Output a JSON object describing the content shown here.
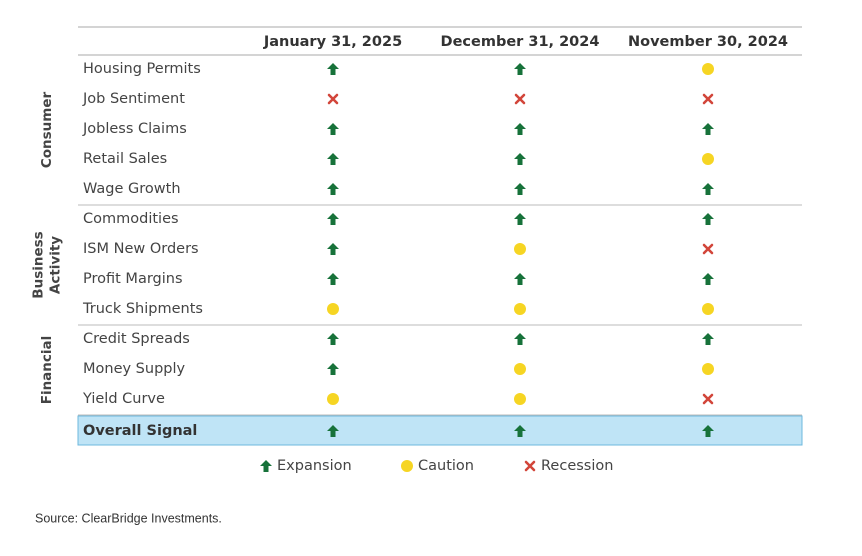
{
  "header": {
    "columns": [
      "January 31, 2025",
      "December 31, 2024",
      "November 30, 2024"
    ]
  },
  "groups": [
    {
      "label": [
        "Consumer"
      ],
      "rows": [
        {
          "label": "Housing Permits",
          "signals": [
            "Expansion",
            "Expansion",
            "Caution"
          ]
        },
        {
          "label": "Job Sentiment",
          "signals": [
            "Recession",
            "Recession",
            "Recession"
          ]
        },
        {
          "label": "Jobless Claims",
          "signals": [
            "Expansion",
            "Expansion",
            "Expansion"
          ]
        },
        {
          "label": "Retail Sales",
          "signals": [
            "Expansion",
            "Expansion",
            "Caution"
          ]
        },
        {
          "label": "Wage Growth",
          "signals": [
            "Expansion",
            "Expansion",
            "Expansion"
          ]
        }
      ]
    },
    {
      "label": [
        "Business",
        "Activity"
      ],
      "rows": [
        {
          "label": "Commodities",
          "signals": [
            "Expansion",
            "Expansion",
            "Expansion"
          ]
        },
        {
          "label": "ISM New Orders",
          "signals": [
            "Expansion",
            "Caution",
            "Recession"
          ]
        },
        {
          "label": "Profit Margins",
          "signals": [
            "Expansion",
            "Expansion",
            "Expansion"
          ]
        },
        {
          "label": "Truck Shipments",
          "signals": [
            "Caution",
            "Caution",
            "Caution"
          ]
        }
      ]
    },
    {
      "label": [
        "Financial"
      ],
      "rows": [
        {
          "label": "Credit Spreads",
          "signals": [
            "Expansion",
            "Expansion",
            "Expansion"
          ]
        },
        {
          "label": "Money Supply",
          "signals": [
            "Expansion",
            "Caution",
            "Caution"
          ]
        },
        {
          "label": "Yield Curve",
          "signals": [
            "Caution",
            "Caution",
            "Recession"
          ]
        }
      ]
    }
  ],
  "overall": {
    "label": "Overall Signal",
    "signals": [
      "Expansion",
      "Expansion",
      "Expansion"
    ]
  },
  "legend": [
    "Expansion",
    "Caution",
    "Recession"
  ],
  "source": "Source: ClearBridge Investments."
}
